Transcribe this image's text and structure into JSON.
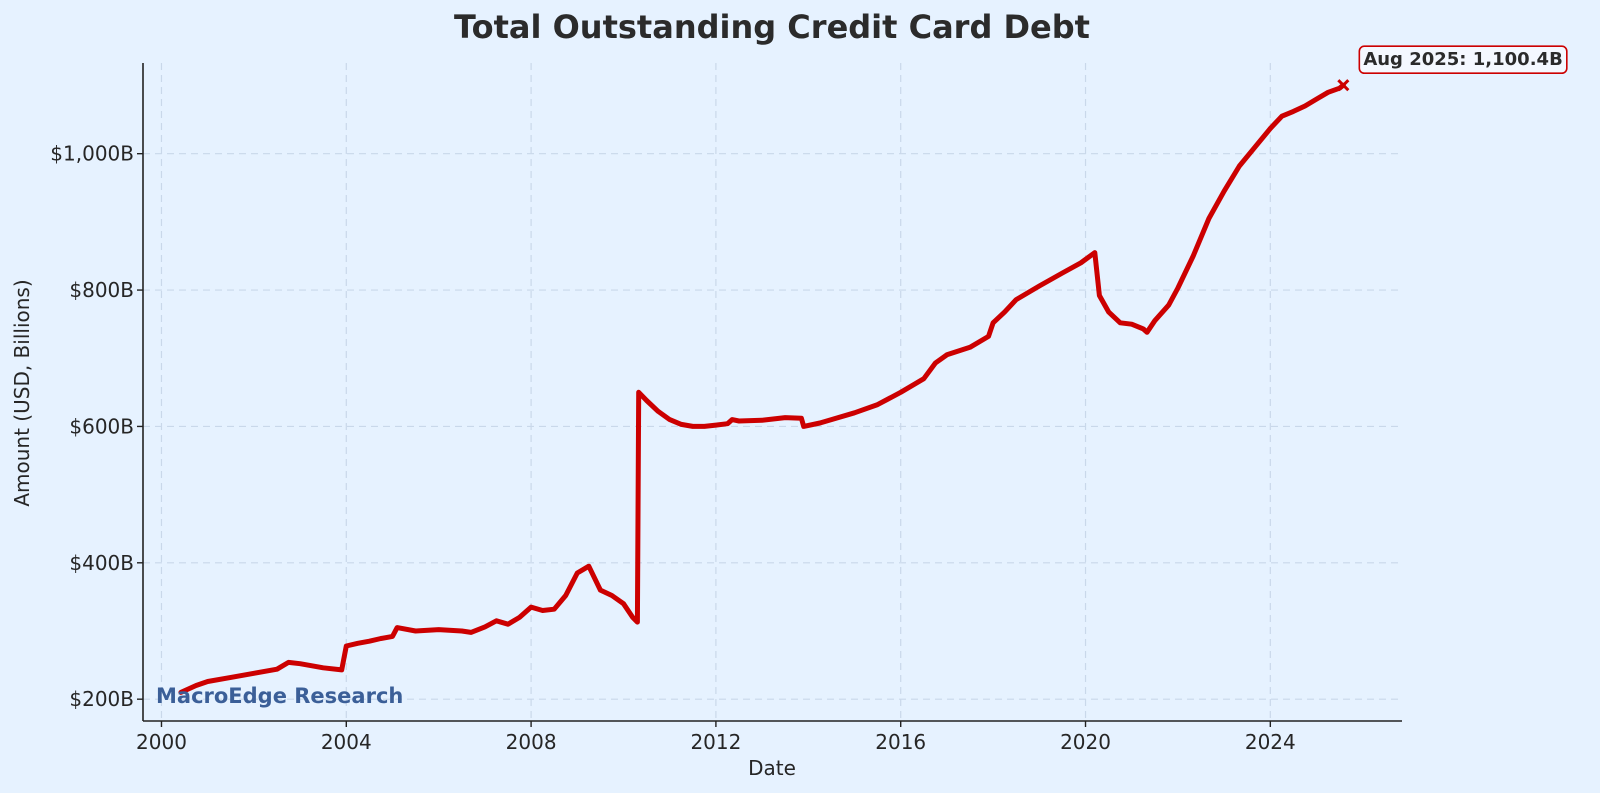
{
  "chart_data": {
    "type": "line",
    "title": "Total Outstanding Credit Card Debt",
    "xlabel": "Date",
    "ylabel": "Amount (USD, Billions)",
    "xlim": [
      1999.6,
      2026.85
    ],
    "ylim": [
      168,
      1133
    ],
    "grid": true,
    "x_ticks": [
      2000,
      2004,
      2008,
      2012,
      2016,
      2020,
      2024
    ],
    "x_tick_labels": [
      "2000",
      "2004",
      "2008",
      "2012",
      "2016",
      "2020",
      "2024"
    ],
    "y_ticks": [
      200,
      400,
      600,
      800,
      1000
    ],
    "y_tick_labels": [
      "$200B",
      "$400B",
      "$600B",
      "$800B",
      "$1,000B"
    ],
    "series": [
      {
        "color": "#cc0000",
        "points": [
          [
            2000.42,
            210
          ],
          [
            2000.75,
            220
          ],
          [
            2001.0,
            226
          ],
          [
            2001.5,
            232
          ],
          [
            2002.0,
            238
          ],
          [
            2002.5,
            244
          ],
          [
            2002.75,
            254
          ],
          [
            2003.0,
            252
          ],
          [
            2003.5,
            246
          ],
          [
            2003.9,
            243
          ],
          [
            2004.0,
            278
          ],
          [
            2004.25,
            282
          ],
          [
            2004.5,
            285
          ],
          [
            2004.75,
            289
          ],
          [
            2005.0,
            292
          ],
          [
            2005.1,
            305
          ],
          [
            2005.5,
            300
          ],
          [
            2006.0,
            302
          ],
          [
            2006.5,
            300
          ],
          [
            2006.7,
            298
          ],
          [
            2007.0,
            306
          ],
          [
            2007.25,
            315
          ],
          [
            2007.5,
            310
          ],
          [
            2007.75,
            320
          ],
          [
            2008.0,
            335
          ],
          [
            2008.25,
            330
          ],
          [
            2008.5,
            332
          ],
          [
            2008.75,
            352
          ],
          [
            2009.0,
            385
          ],
          [
            2009.25,
            395
          ],
          [
            2009.5,
            360
          ],
          [
            2009.75,
            352
          ],
          [
            2010.0,
            340
          ],
          [
            2010.2,
            320
          ],
          [
            2010.3,
            313
          ],
          [
            2010.33,
            650
          ],
          [
            2010.5,
            638
          ],
          [
            2010.75,
            622
          ],
          [
            2011.0,
            610
          ],
          [
            2011.25,
            603
          ],
          [
            2011.5,
            600
          ],
          [
            2011.75,
            600
          ],
          [
            2012.0,
            602
          ],
          [
            2012.25,
            604
          ],
          [
            2012.35,
            610
          ],
          [
            2012.5,
            608
          ],
          [
            2013.0,
            609
          ],
          [
            2013.5,
            613
          ],
          [
            2013.85,
            612
          ],
          [
            2013.9,
            600
          ],
          [
            2014.25,
            605
          ],
          [
            2014.5,
            610
          ],
          [
            2015.0,
            620
          ],
          [
            2015.5,
            632
          ],
          [
            2016.0,
            650
          ],
          [
            2016.5,
            670
          ],
          [
            2016.75,
            693
          ],
          [
            2017.0,
            705
          ],
          [
            2017.5,
            716
          ],
          [
            2017.9,
            732
          ],
          [
            2018.0,
            752
          ],
          [
            2018.25,
            768
          ],
          [
            2018.5,
            786
          ],
          [
            2019.0,
            806
          ],
          [
            2019.5,
            825
          ],
          [
            2019.9,
            840
          ],
          [
            2020.2,
            855
          ],
          [
            2020.3,
            792
          ],
          [
            2020.5,
            768
          ],
          [
            2020.75,
            752
          ],
          [
            2021.0,
            750
          ],
          [
            2021.25,
            743
          ],
          [
            2021.33,
            738
          ],
          [
            2021.5,
            755
          ],
          [
            2021.8,
            778
          ],
          [
            2022.0,
            803
          ],
          [
            2022.33,
            850
          ],
          [
            2022.67,
            905
          ],
          [
            2023.0,
            945
          ],
          [
            2023.33,
            982
          ],
          [
            2023.67,
            1010
          ],
          [
            2024.0,
            1037
          ],
          [
            2024.25,
            1055
          ],
          [
            2024.5,
            1062
          ],
          [
            2024.75,
            1070
          ],
          [
            2025.0,
            1080
          ],
          [
            2025.25,
            1090
          ],
          [
            2025.5,
            1096
          ],
          [
            2025.58,
            1100.4
          ]
        ]
      }
    ],
    "annotation": {
      "text": "Aug 2025: 1,100.4B",
      "x": 2025.58,
      "y": 1100.4,
      "marker": "x"
    },
    "watermark": "MacroEdge Research"
  }
}
